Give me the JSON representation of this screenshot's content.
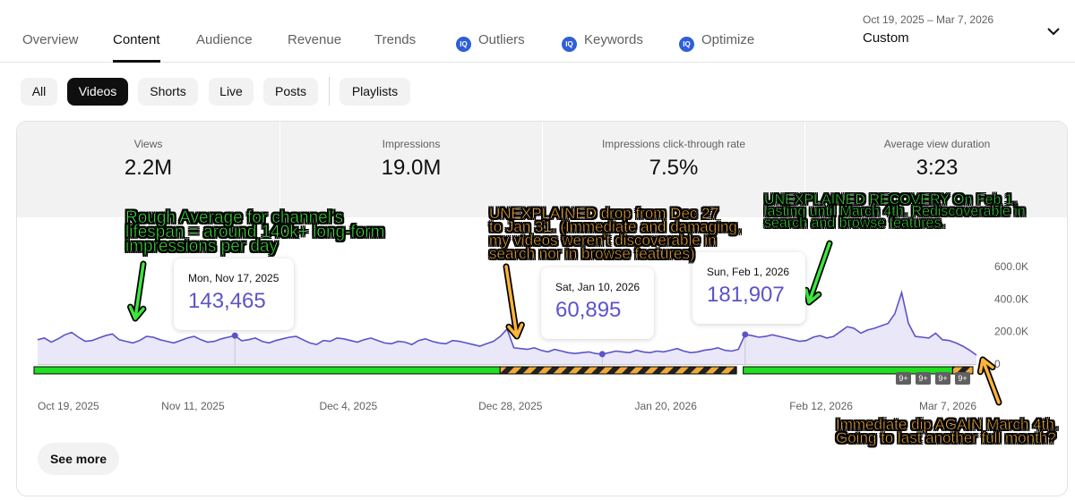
{
  "nav": {
    "tabs": [
      {
        "label": "Overview"
      },
      {
        "label": "Content"
      },
      {
        "label": "Audience"
      },
      {
        "label": "Revenue"
      },
      {
        "label": "Trends"
      },
      {
        "label": "Outliers",
        "icon": "iq-icon"
      },
      {
        "label": "Keywords",
        "icon": "iq-icon"
      },
      {
        "label": "Optimize",
        "icon": "iq-icon"
      }
    ],
    "active_tab": "Content",
    "iq_glyph": "IQ",
    "date_range": "Oct 19, 2025 – Mar 7, 2026",
    "date_preset": "Custom",
    "dropdown_icon": "chevron-down-icon"
  },
  "filters": {
    "chips": [
      {
        "label": "All"
      },
      {
        "label": "Videos"
      },
      {
        "label": "Shorts"
      },
      {
        "label": "Live"
      },
      {
        "label": "Posts"
      },
      {
        "label": "Playlists"
      }
    ],
    "active": "Videos"
  },
  "metrics": [
    {
      "label": "Views",
      "value": "2.2M"
    },
    {
      "label": "Impressions",
      "value": "19.0M"
    },
    {
      "label": "Impressions click-through rate",
      "value": "7.5%"
    },
    {
      "label": "Average view duration",
      "value": "3:23"
    }
  ],
  "tooltips": [
    {
      "date": "Mon, Nov 17, 2025",
      "value": "143,465"
    },
    {
      "date": "Sat, Jan 10, 2026",
      "value": "60,895"
    },
    {
      "date": "Sun, Feb 1, 2026",
      "value": "181,907"
    }
  ],
  "badges": [
    "9+",
    "9+",
    "9+",
    "9+"
  ],
  "see_more": "See more",
  "annotations": {
    "avg": [
      "Rough Average for channel's",
      "lifespan = around 140k+ long-form",
      "impressions per day"
    ],
    "drop": [
      "UNEXPLAINED drop from Dec 27",
      "to Jan 31. (Immediate and damaging,",
      "my videos weren't discoverable in",
      "search nor in browse features)"
    ],
    "recovery": [
      "UNEXPLAINED RECOVERY On Feb 1,",
      "lasting until March 4th. Rediscoverable in",
      "search and browse features."
    ],
    "dip": [
      "Immediate dip AGAIN March 4th.",
      "Going to last another full month?"
    ]
  },
  "colors": {
    "line": "#5b54c9",
    "area": "#e9e7f8",
    "good_bar": "#22dd22",
    "bad_bar_stripe_a": "#f0a93a",
    "bad_bar_stripe_b": "#222222",
    "annotation_green": "#3ee63e",
    "annotation_orange": "#ffb43a"
  },
  "chart_data": {
    "type": "area",
    "x_range": [
      "2025-10-19",
      "2026-03-07"
    ],
    "x_tick_labels": [
      "Oct 19, 2025",
      "Nov 11, 2025",
      "Dec 4, 2025",
      "Dec 28, 2025",
      "Jan 20, 2026",
      "Feb 12, 2026",
      "Mar 7, 2026"
    ],
    "y_tick_labels": [
      "600.0K",
      "400.0K",
      "200.0K",
      "0"
    ],
    "ylim": [
      0,
      600000
    ],
    "grid": false,
    "series": [
      {
        "values": [
          150000,
          160000,
          135000,
          155000,
          180000,
          195000,
          165000,
          140000,
          145000,
          160000,
          175000,
          185000,
          150000,
          140000,
          130000,
          145000,
          170000,
          165000,
          150000,
          140000,
          130000,
          145000,
          160000,
          170000,
          150000,
          135000,
          140000,
          155000,
          165000,
          175000,
          143465,
          150000,
          160000,
          140000,
          130000,
          145000,
          155000,
          165000,
          170000,
          150000,
          130000,
          120000,
          145000,
          140000,
          160000,
          155000,
          145000,
          135000,
          150000,
          160000,
          145000,
          130000,
          125000,
          140000,
          135000,
          120000,
          145000,
          155000,
          140000,
          130000,
          125000,
          145000,
          140000,
          130000,
          120000,
          110000,
          125000,
          140000,
          170000,
          215000,
          100000,
          95000,
          90000,
          100000,
          85000,
          75000,
          90000,
          80000,
          70000,
          65000,
          70000,
          75000,
          65000,
          60895,
          70000,
          80000,
          75000,
          70000,
          85000,
          75000,
          70000,
          80000,
          75000,
          85000,
          95000,
          80000,
          70000,
          75000,
          85000,
          90000,
          100000,
          85000,
          80000,
          90000,
          181907,
          175000,
          165000,
          170000,
          180000,
          170000,
          160000,
          150000,
          140000,
          145000,
          165000,
          175000,
          160000,
          170000,
          200000,
          230000,
          220000,
          190000,
          210000,
          220000,
          235000,
          250000,
          310000,
          440000,
          250000,
          170000,
          165000,
          160000,
          190000,
          150000,
          145000,
          130000,
          110000,
          85000,
          55000
        ]
      }
    ],
    "status_periods": [
      {
        "from": "2025-10-19",
        "to": "2025-12-27",
        "status": "discoverable"
      },
      {
        "from": "2025-12-27",
        "to": "2026-01-31",
        "status": "suppressed"
      },
      {
        "from": "2026-02-01",
        "to": "2026-03-04",
        "status": "discoverable"
      },
      {
        "from": "2026-03-04",
        "to": "2026-03-07",
        "status": "suppressed"
      }
    ]
  }
}
